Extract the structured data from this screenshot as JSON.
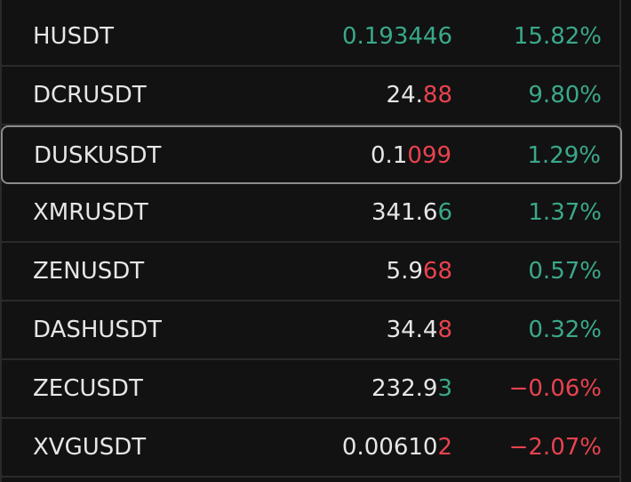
{
  "rows": [
    {
      "symbol": "HUSDT",
      "price": [
        {
          "text": "0.193446",
          "color": "#3aa88a"
        }
      ],
      "change": "15.82%",
      "change_color": "#3aa88a"
    },
    {
      "symbol": "DCRUSDT",
      "price": [
        {
          "text": "24.",
          "color": "#e6e6e6"
        },
        {
          "text": "88",
          "color": "#e8424f"
        }
      ],
      "change": "9.80%",
      "change_color": "#3aa88a"
    },
    {
      "symbol": "DUSKUSDT",
      "price": [
        {
          "text": "0.1",
          "color": "#e6e6e6"
        },
        {
          "text": "099",
          "color": "#e8424f"
        }
      ],
      "change": "1.29%",
      "change_color": "#3aa88a",
      "selected": true
    },
    {
      "symbol": "XMRUSDT",
      "price": [
        {
          "text": "341.6",
          "color": "#e6e6e6"
        },
        {
          "text": "6",
          "color": "#3aa88a"
        }
      ],
      "change": "1.37%",
      "change_color": "#3aa88a"
    },
    {
      "symbol": "ZENUSDT",
      "price": [
        {
          "text": "5.9",
          "color": "#e6e6e6"
        },
        {
          "text": "68",
          "color": "#e8424f"
        }
      ],
      "change": "0.57%",
      "change_color": "#3aa88a"
    },
    {
      "symbol": "DASHUSDT",
      "price": [
        {
          "text": "34.4",
          "color": "#e6e6e6"
        },
        {
          "text": "8",
          "color": "#e8424f"
        }
      ],
      "change": "0.32%",
      "change_color": "#3aa88a"
    },
    {
      "symbol": "ZECUSDT",
      "price": [
        {
          "text": "232.9",
          "color": "#e6e6e6"
        },
        {
          "text": "3",
          "color": "#3aa88a"
        }
      ],
      "change": "−0.06%",
      "change_color": "#e8424f"
    },
    {
      "symbol": "XVGUSDT",
      "price": [
        {
          "text": "0.00610",
          "color": "#e6e6e6"
        },
        {
          "text": "2",
          "color": "#e8424f"
        }
      ],
      "change": "−2.07%",
      "change_color": "#e8424f"
    }
  ]
}
